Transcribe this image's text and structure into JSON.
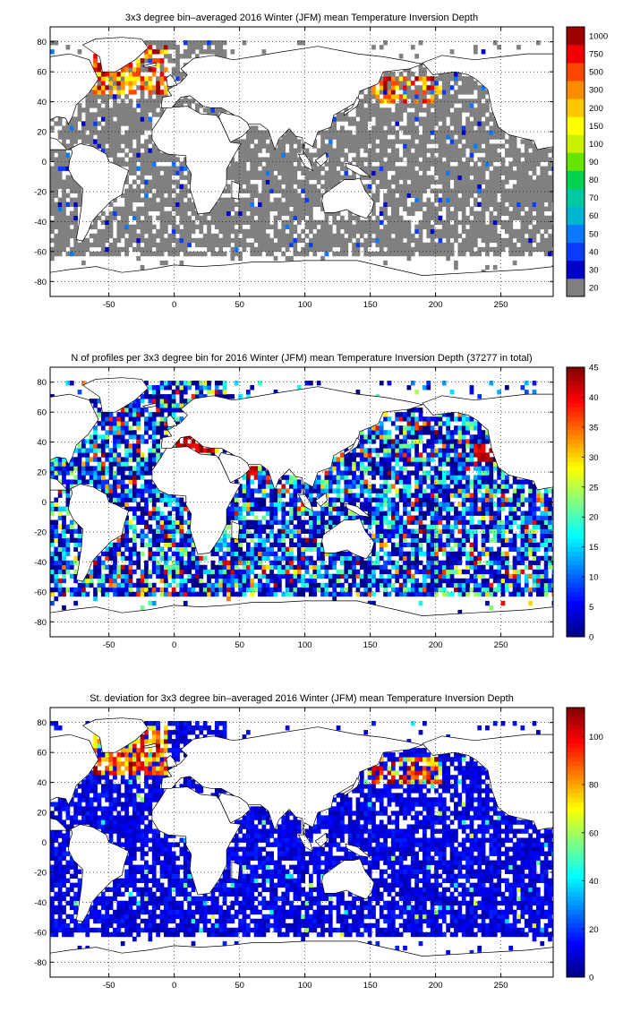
{
  "chart_data": [
    {
      "type": "heatmap",
      "title": "3x3 degree bin–averaged 2016 Winter (JFM) mean Temperature Inversion Depth",
      "xlim": [
        -95,
        290
      ],
      "ylim": [
        -90,
        90
      ],
      "x_ticks": [
        -50,
        0,
        50,
        100,
        150,
        200,
        250
      ],
      "y_ticks": [
        80,
        60,
        40,
        20,
        0,
        -20,
        -40,
        -60,
        -80
      ],
      "grid": "dotted",
      "colorbar": {
        "scale": "categorical",
        "labels": [
          "20",
          "30",
          "40",
          "50",
          "60",
          "70",
          "80",
          "90",
          "100",
          "150",
          "200",
          "300",
          "500",
          "750",
          "1000"
        ],
        "colors": [
          "#808080",
          "#0000c8",
          "#0a3cff",
          "#0a78ff",
          "#00b4d2",
          "#00c8a0",
          "#00d250",
          "#64e600",
          "#c8f000",
          "#ffff00",
          "#ffc800",
          "#ff8c00",
          "#ff4600",
          "#f00000",
          "#a00000"
        ]
      },
      "field": "mean"
    },
    {
      "type": "heatmap",
      "title": "N of profiles per 3x3 degree bin for 2016 Winter (JFM) mean Temperature Inversion Depth  (37277 in total)",
      "xlim": [
        -95,
        290
      ],
      "ylim": [
        -90,
        90
      ],
      "x_ticks": [
        -50,
        0,
        50,
        100,
        150,
        200,
        250
      ],
      "y_ticks": [
        80,
        60,
        40,
        20,
        0,
        -20,
        -40,
        -60,
        -80
      ],
      "grid": "dotted",
      "colorbar": {
        "scale": "linear",
        "range": [
          0,
          45
        ],
        "ticks": [
          0,
          5,
          10,
          15,
          20,
          25,
          30,
          35,
          40,
          45
        ]
      },
      "field": "count",
      "total_profiles": 37277
    },
    {
      "type": "heatmap",
      "title": "St. deviation for 3x3 degree bin–averaged 2016 Winter (JFM) mean Temperature Inversion Depth",
      "xlim": [
        -95,
        290
      ],
      "ylim": [
        -90,
        90
      ],
      "x_ticks": [
        -50,
        0,
        50,
        100,
        150,
        200,
        250
      ],
      "y_ticks": [
        80,
        60,
        40,
        20,
        0,
        -20,
        -40,
        -60,
        -80
      ],
      "grid": "dotted",
      "colorbar": {
        "scale": "linear",
        "range": [
          0,
          112
        ],
        "ticks": [
          0,
          20,
          40,
          60,
          80,
          100
        ]
      },
      "field": "std"
    }
  ]
}
